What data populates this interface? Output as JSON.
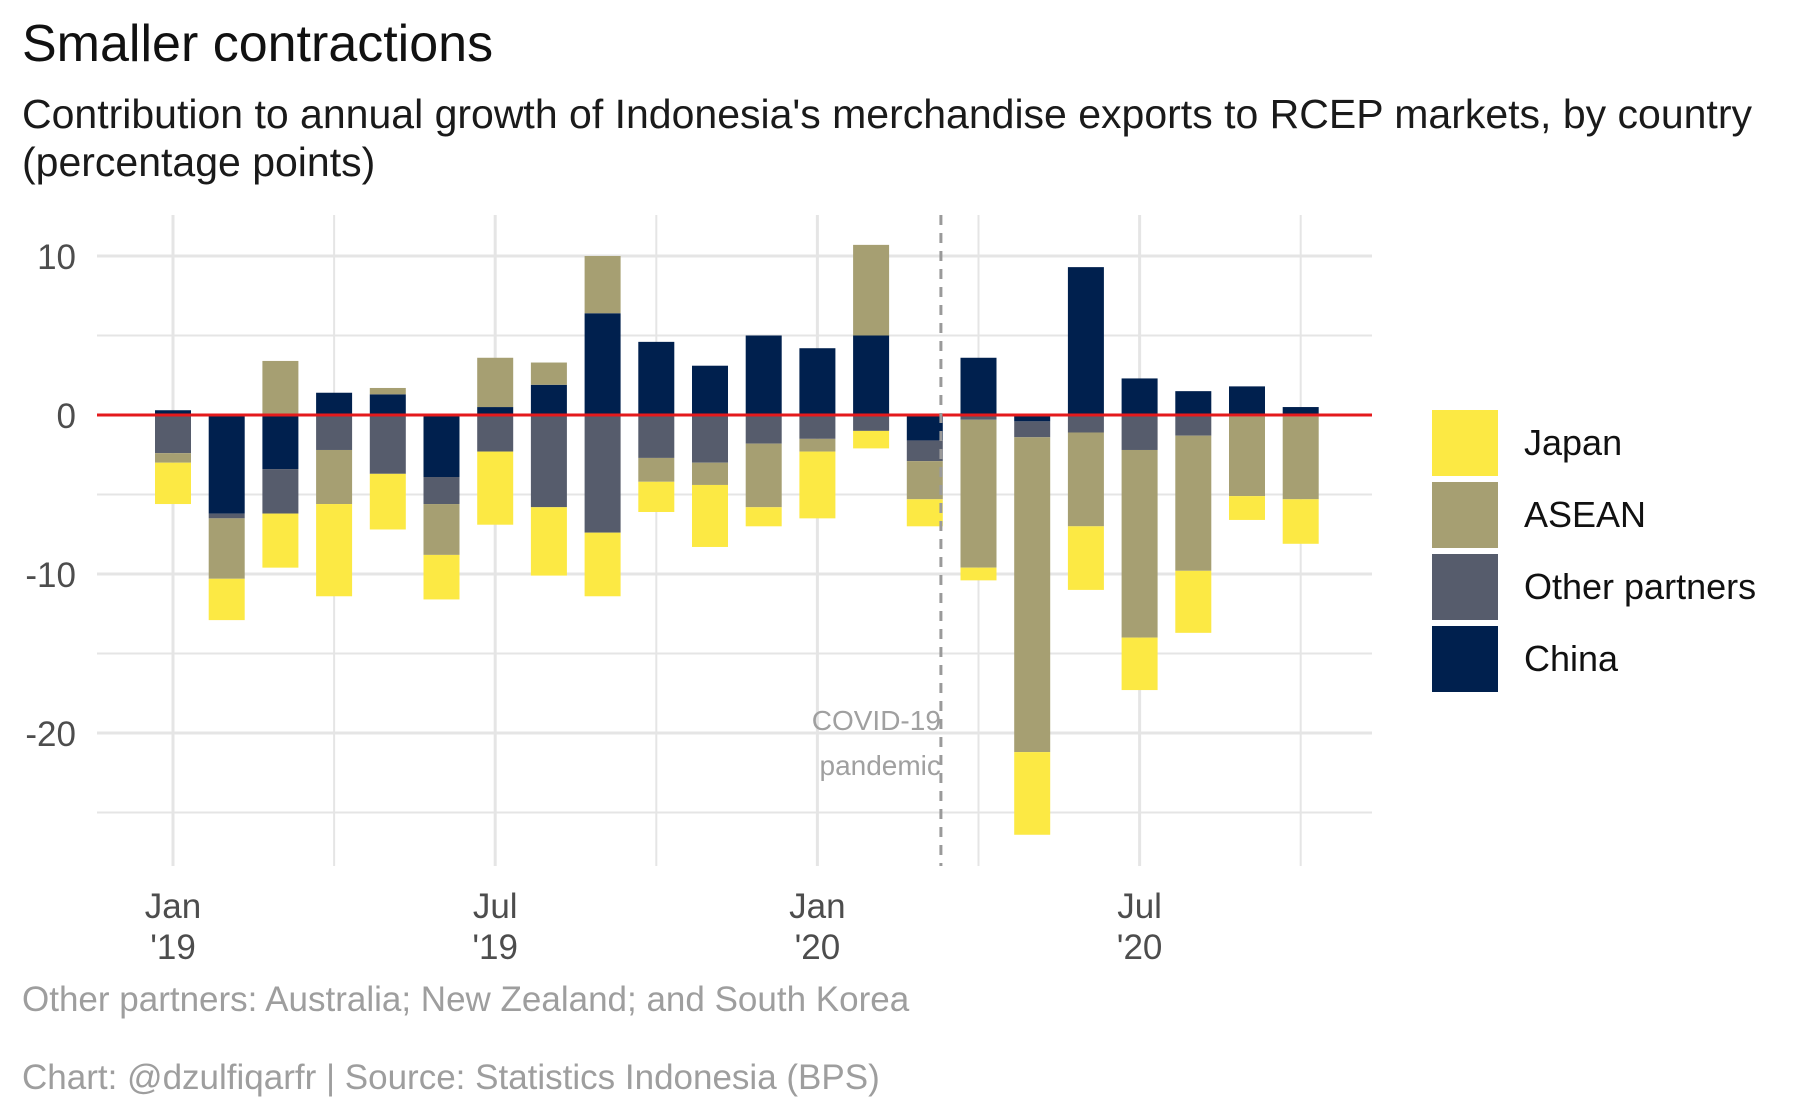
{
  "title": "Smaller contractions",
  "subtitle": "Contribution to annual growth of Indonesia's merchandise exports to RCEP markets, by country (percentage points)",
  "caption_note": "Other partners: Australia; New Zealand; and South Korea",
  "caption_source": "Chart: @dzulfiqarfr | Source: Statistics Indonesia (BPS)",
  "colors": {
    "Japan": "#fce944",
    "ASEAN": "#a69f72",
    "Other partners": "#565c6c",
    "China": "#00204e",
    "zero_line": "#e41a1c",
    "grid": "#e5e5e5",
    "annotation": "#a0a0a0"
  },
  "legend": [
    "Japan",
    "ASEAN",
    "Other partners",
    "China"
  ],
  "chart_data": {
    "type": "bar",
    "stacked": true,
    "x_tick_labels": [
      {
        "month": "2019-01",
        "label": [
          "Jan",
          "'19"
        ]
      },
      {
        "month": "2019-07",
        "label": [
          "Jul",
          "'19"
        ]
      },
      {
        "month": "2020-01",
        "label": [
          "Jan",
          "'20"
        ]
      },
      {
        "month": "2020-07",
        "label": [
          "Jul",
          "'20"
        ]
      }
    ],
    "y_ticks": [
      10,
      0,
      -10,
      -20
    ],
    "ylim": [
      -28.5,
      12.5
    ],
    "grid": true,
    "legend_position": "right",
    "categories": [
      "2019-01",
      "2019-02",
      "2019-03",
      "2019-04",
      "2019-05",
      "2019-06",
      "2019-07",
      "2019-08",
      "2019-09",
      "2019-10",
      "2019-11",
      "2019-12",
      "2020-01",
      "2020-02",
      "2020-03",
      "2020-04",
      "2020-05",
      "2020-06",
      "2020-07",
      "2020-08",
      "2020-09",
      "2020-10"
    ],
    "series": [
      {
        "name": "China",
        "values": [
          0.3,
          -6.2,
          -3.4,
          1.4,
          1.3,
          -3.9,
          0.5,
          1.9,
          6.4,
          4.6,
          3.1,
          5.0,
          4.2,
          5.0,
          -1.6,
          3.6,
          -0.4,
          9.3,
          2.3,
          1.5,
          1.8,
          0.5
        ]
      },
      {
        "name": "Other partners",
        "values": [
          -2.4,
          -0.3,
          -2.8,
          -2.2,
          -3.7,
          -1.7,
          -2.3,
          -5.8,
          -7.4,
          -2.7,
          -3.0,
          -1.8,
          -1.5,
          -1.0,
          -1.3,
          -0.3,
          -1.0,
          -1.1,
          -2.2,
          -1.3,
          -0.1,
          -0.1
        ]
      },
      {
        "name": "ASEAN",
        "values": [
          -0.6,
          -3.8,
          3.4,
          -3.4,
          0.4,
          -3.2,
          3.1,
          1.4,
          3.6,
          -1.5,
          -1.4,
          -4.0,
          -0.8,
          5.7,
          -2.4,
          -9.3,
          -19.8,
          -5.9,
          -11.8,
          -8.5,
          -5.0,
          -5.2
        ]
      },
      {
        "name": "Japan",
        "values": [
          -2.6,
          -2.6,
          -3.4,
          -5.8,
          -3.5,
          -2.8,
          -4.6,
          -4.3,
          -4.0,
          -1.9,
          -3.9,
          -1.2,
          -4.2,
          -1.1,
          -1.7,
          -0.8,
          -5.2,
          -4.0,
          -3.3,
          -3.9,
          -1.5,
          -2.8
        ]
      }
    ],
    "annotation": {
      "month": "2020-03",
      "lines": [
        "COVID-19",
        "pandemic"
      ]
    }
  }
}
